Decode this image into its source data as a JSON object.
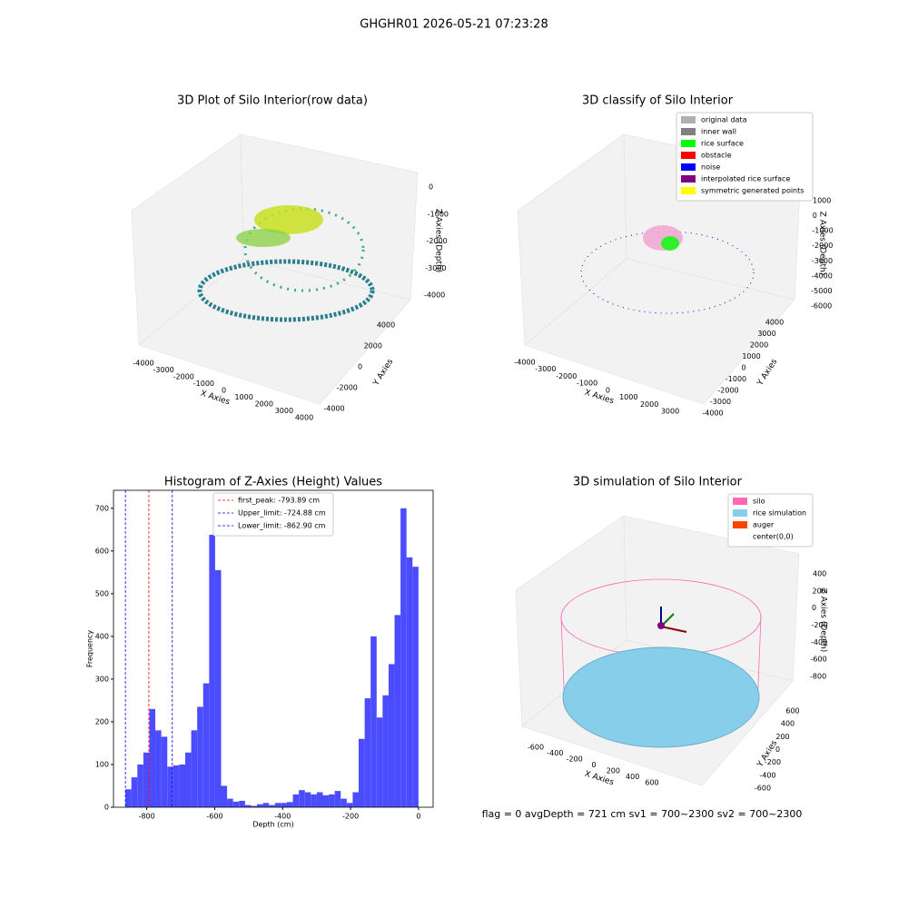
{
  "suptitle": "GHGHR01 2026-05-21 07:23:28",
  "footer": "flag = 0     avgDepth = 721 cm  sv1 = 700~2300  sv2 = 700~2300",
  "chart_data": [
    {
      "type": "scatter3d",
      "title": "3D Plot of Silo Interior(row data)",
      "xlabel": "X Axies",
      "ylabel": "Y Axies",
      "zlabel": "Z Axies (Depth)",
      "xticks": [
        -4000,
        -3000,
        -2000,
        -1000,
        0,
        1000,
        2000,
        3000,
        4000
      ],
      "yticks": [
        -4000,
        -2000,
        0,
        2000,
        4000
      ],
      "zticks": [
        0,
        -1000,
        -2000,
        -3000,
        -4000
      ]
    },
    {
      "type": "scatter3d",
      "title": "3D classify of Silo Interior",
      "xlabel": "X Axies",
      "ylabel": "Y Axies",
      "zlabel": "Z Axies (Depth)",
      "xticks": [
        -4000,
        -3000,
        -2000,
        -1000,
        0,
        1000,
        2000,
        3000
      ],
      "yticks": [
        -4000,
        -3000,
        -2000,
        -1000,
        0,
        1000,
        2000,
        3000,
        4000
      ],
      "zticks": [
        1000,
        0,
        -1000,
        -2000,
        -3000,
        -4000,
        -5000,
        -6000
      ],
      "legend": [
        {
          "name": "original data",
          "color": "#b0b0b0"
        },
        {
          "name": "inner wall",
          "color": "#808080"
        },
        {
          "name": "rice surface",
          "color": "#00ff00"
        },
        {
          "name": "obstacle",
          "color": "#ff0000"
        },
        {
          "name": "noise",
          "color": "#0000ff"
        },
        {
          "name": "interpolated rice surface",
          "color": "#800080"
        },
        {
          "name": "symmetric generated points",
          "color": "#ffff00"
        }
      ]
    },
    {
      "type": "histogram",
      "title": "Histogram of Z-Axies (Height) Values",
      "xlabel": "Depth (cm)",
      "ylabel": "Frequency",
      "color": "#4c4cff",
      "bins": [
        -862.9,
        -845.3,
        -827.7,
        -810.1,
        -792.5,
        -774.9,
        -757.3,
        -739.6,
        -722.0,
        -704.4,
        -686.8,
        -669.2,
        -651.6,
        -634.0,
        -616.4,
        -598.8,
        -581.2,
        -563.6,
        -545.9,
        -528.3,
        -510.7,
        -493.1,
        -475.5,
        -457.9,
        -440.3,
        -422.7,
        -405.1,
        -387.5,
        -369.8,
        -352.2,
        -334.6,
        -317.0,
        -299.4,
        -281.8,
        -264.2,
        -246.6,
        -229.0,
        -211.4,
        -193.8,
        -176.2,
        -158.5,
        -140.9,
        -123.3,
        -105.7,
        -88.1,
        -70.5,
        -52.9,
        -35.3,
        -17.7,
        0
      ],
      "values": [
        42,
        70,
        100,
        128,
        230,
        180,
        165,
        95,
        98,
        100,
        128,
        180,
        235,
        290,
        638,
        555,
        50,
        20,
        13,
        15,
        5,
        3,
        7,
        10,
        5,
        10,
        10,
        12,
        30,
        40,
        35,
        30,
        35,
        28,
        30,
        38,
        20,
        10,
        35,
        160,
        255,
        400,
        210,
        262,
        335,
        450,
        700,
        585,
        563
      ],
      "xlim": [
        -898,
        43
      ],
      "ylim": [
        0,
        742
      ],
      "xticks": [
        -800,
        -600,
        -400,
        -200,
        0
      ],
      "yticks": [
        0,
        100,
        200,
        300,
        400,
        500,
        600,
        700
      ],
      "lines": [
        {
          "name": "first_peak: -793.89 cm",
          "value": -793.89,
          "color": "#ff0000"
        },
        {
          "name": "Upper_limit: -724.88 cm",
          "value": -724.88,
          "color": "#0000ff"
        },
        {
          "name": "Lower_limit: -862.90 cm",
          "value": -862.9,
          "color": "#0000ff"
        }
      ]
    },
    {
      "type": "surface3d",
      "title": "3D simulation of Silo Interior",
      "xlabel": "X Axies",
      "ylabel": "Y Axies",
      "zlabel": "Z Axies (Depth)",
      "xticks": [
        -600,
        -400,
        -200,
        0,
        200,
        400,
        600
      ],
      "yticks": [
        -600,
        -400,
        -200,
        0,
        200,
        400,
        600
      ],
      "zticks": [
        400,
        200,
        0,
        -200,
        -400,
        -600,
        -800
      ],
      "legend": [
        {
          "name": "silo",
          "color": "#ff69b4"
        },
        {
          "name": "rice simulation",
          "color": "#87ceeb"
        },
        {
          "name": "auger",
          "color": "#ff4500"
        },
        {
          "name": "center(0,0)",
          "color": "#ffffff"
        }
      ]
    }
  ]
}
